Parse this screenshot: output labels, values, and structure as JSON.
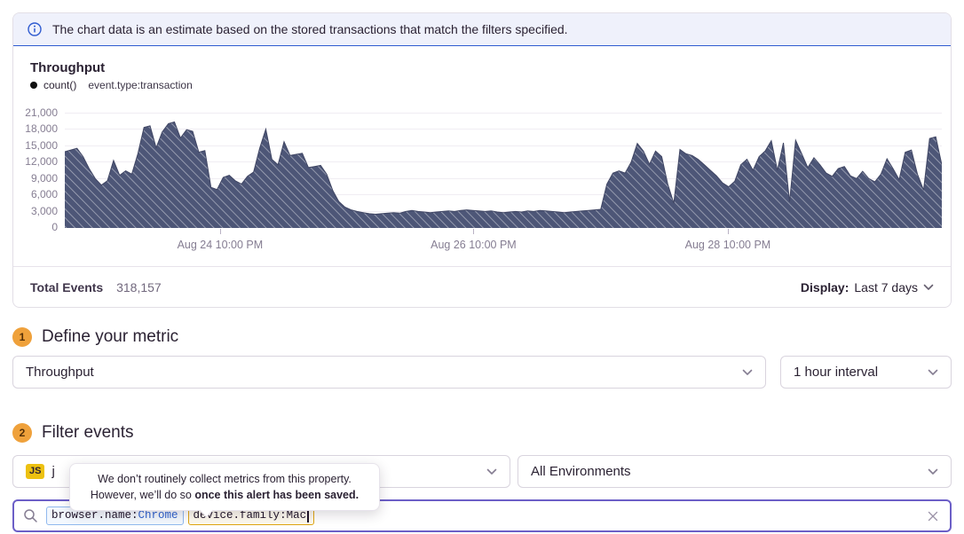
{
  "banner": {
    "text": "The chart data is an estimate based on the stored transactions that match the filters specified."
  },
  "chart_panel": {
    "title": "Throughput",
    "legend": {
      "series": "count()",
      "filter": "event.type:transaction"
    },
    "footer": {
      "total_label": "Total Events",
      "total_value": "318,157",
      "display_label": "Display:",
      "display_value": "Last 7 days"
    }
  },
  "chart_data": {
    "type": "area",
    "title": "Throughput",
    "series_name": "count()",
    "query": "event.type:transaction",
    "ylim": [
      0,
      21000
    ],
    "y_ticks": [
      {
        "value": 0,
        "label": "0"
      },
      {
        "value": 3000,
        "label": "3,000"
      },
      {
        "value": 6000,
        "label": "6,000"
      },
      {
        "value": 9000,
        "label": "9,000"
      },
      {
        "value": 12000,
        "label": "12,000"
      },
      {
        "value": 15000,
        "label": "15,000"
      },
      {
        "value": 18000,
        "label": "18,000"
      },
      {
        "value": 21000,
        "label": "21,000"
      }
    ],
    "x_ticks": [
      {
        "label": "Aug 24 10:00 PM",
        "pos": 0.177
      },
      {
        "label": "Aug 26 10:00 PM",
        "pos": 0.466
      },
      {
        "label": "Aug 28 10:00 PM",
        "pos": 0.756
      }
    ],
    "grid": "horizontal",
    "legend_position": "top-left",
    "fill_color": "#4d5677",
    "hatch_color": "rgba(255,255,255,0.5)",
    "line_color": "#3f4563",
    "total_events": 318157,
    "values": [
      13900,
      14200,
      14500,
      13000,
      10800,
      9000,
      7800,
      8600,
      12300,
      9600,
      10400,
      9800,
      13500,
      18300,
      18600,
      14600,
      17500,
      19000,
      19300,
      16400,
      17900,
      17600,
      13800,
      14100,
      7400,
      7000,
      9200,
      9600,
      8600,
      8000,
      9400,
      10200,
      14500,
      18000,
      12500,
      11500,
      15700,
      13200,
      13400,
      13600,
      11000,
      11200,
      11400,
      9800,
      6800,
      4800,
      3800,
      3300,
      3000,
      2800,
      2600,
      2500,
      2600,
      2700,
      2800,
      2700,
      3000,
      3200,
      3000,
      2900,
      2800,
      2900,
      3000,
      3100,
      3000,
      3200,
      3300,
      3200,
      3100,
      3000,
      3100,
      2900,
      2800,
      2900,
      3000,
      2900,
      3100,
      3000,
      3200,
      3100,
      3000,
      2900,
      2800,
      2900,
      3000,
      3100,
      3200,
      3300,
      3400,
      8000,
      10000,
      10400,
      10000,
      12000,
      15400,
      14000,
      11600,
      14000,
      13000,
      8000,
      4500,
      14300,
      13500,
      13200,
      12500,
      11500,
      10500,
      9500,
      8200,
      7500,
      8500,
      11500,
      12500,
      10500,
      13000,
      14000,
      15900,
      10500,
      15500,
      4800,
      16000,
      13500,
      11000,
      12800,
      11500,
      10000,
      9400,
      10800,
      11200,
      9500,
      9000,
      10300,
      9000,
      8400,
      9800,
      12600,
      10800,
      8800,
      13800,
      14200,
      9800,
      6900,
      16300,
      16600,
      11500
    ]
  },
  "sections": {
    "metric": {
      "number": "1",
      "title": "Define your metric",
      "metric_value": "Throughput",
      "interval_value": "1 hour interval"
    },
    "filter": {
      "number": "2",
      "title": "Filter events",
      "project_platform": "JS",
      "project_visible_label": "j",
      "environment_value": "All Environments"
    }
  },
  "tooltip": {
    "line1": "We don’t routinely collect metrics from this property.",
    "line2_regular": "However, we’ll do so ",
    "line2_bold": "once this alert has been saved."
  },
  "search": {
    "tokens": [
      {
        "key": "browser.name:",
        "value": "Chrome"
      },
      {
        "key": "device.family:",
        "value": "Mac"
      }
    ]
  },
  "colors": {
    "accent_purple": "#6C5FC7",
    "banner_blue": "#2f5bd0",
    "banner_bg": "#eff1fb",
    "step_badge": "#efa13b",
    "token_blue_border": "#91b9ee",
    "token_gold_border": "#dfa511",
    "js_badge_yellow": "#edc111"
  }
}
